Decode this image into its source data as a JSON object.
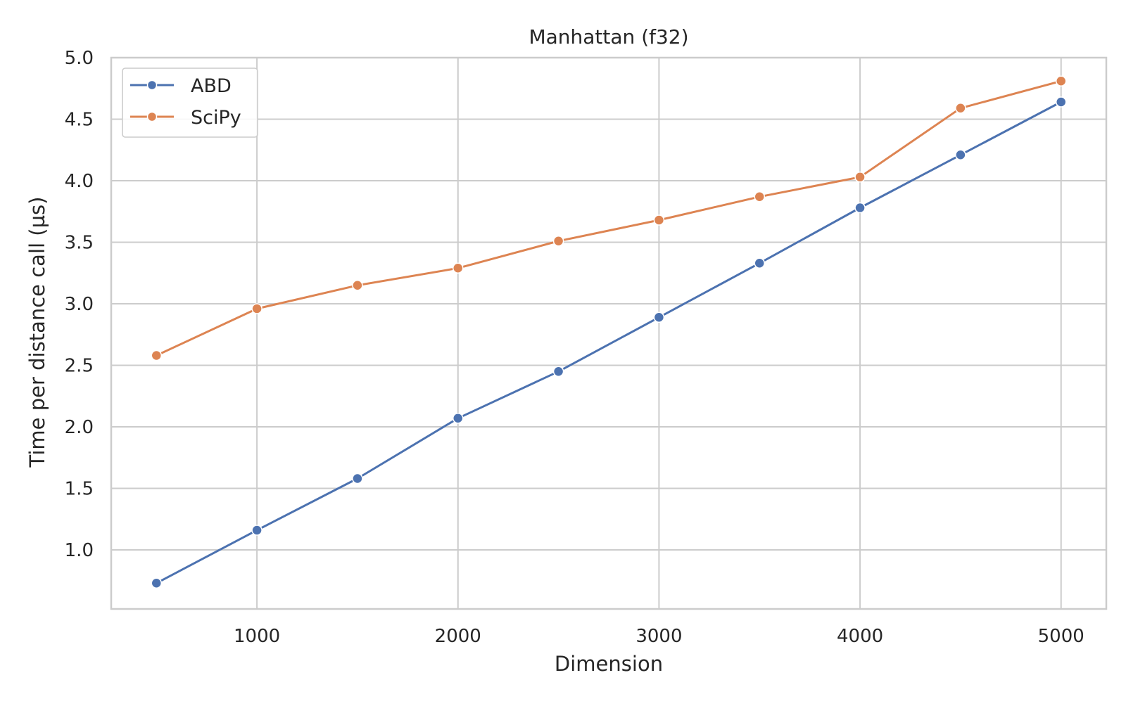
{
  "chart_data": {
    "type": "line",
    "title": "Manhattan (f32)",
    "xlabel": "Dimension",
    "ylabel": "Time per distance call (µs)",
    "x": [
      500,
      1000,
      1500,
      2000,
      2500,
      3000,
      3500,
      4000,
      4500,
      5000
    ],
    "series": [
      {
        "name": "ABD",
        "color": "#4c72b0",
        "values": [
          0.73,
          1.16,
          1.58,
          2.07,
          2.45,
          2.89,
          3.33,
          3.78,
          4.21,
          4.64
        ]
      },
      {
        "name": "SciPy",
        "color": "#dd8452",
        "values": [
          2.58,
          2.96,
          3.15,
          3.29,
          3.51,
          3.68,
          3.87,
          4.03,
          4.59,
          4.81
        ]
      }
    ],
    "xlim": [
      275,
      5225
    ],
    "ylim": [
      0.52,
      5.0
    ],
    "xticks": [
      1000,
      2000,
      3000,
      4000,
      5000
    ],
    "xtick_labels": [
      "1000",
      "2000",
      "3000",
      "4000",
      "5000"
    ],
    "yticks": [
      1.0,
      1.5,
      2.0,
      2.5,
      3.0,
      3.5,
      4.0,
      4.5,
      5.0
    ],
    "ytick_labels": [
      "1.0",
      "1.5",
      "2.0",
      "2.5",
      "3.0",
      "3.5",
      "4.0",
      "4.5",
      "5.0"
    ],
    "grid": true,
    "legend_position": "top-left",
    "marker": "circle"
  }
}
